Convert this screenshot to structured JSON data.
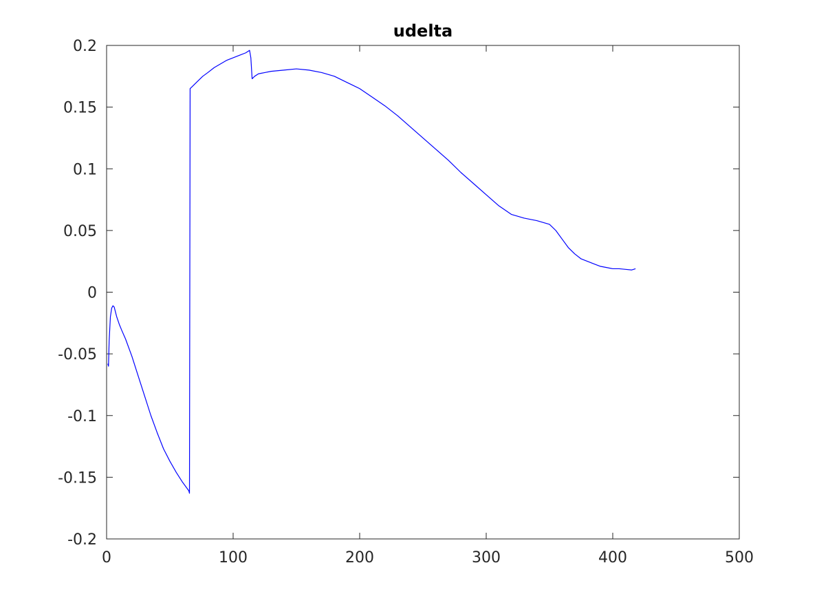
{
  "chart_data": {
    "type": "line",
    "title": "udelta",
    "xlabel": "",
    "ylabel": "",
    "xlim": [
      0,
      500
    ],
    "ylim": [
      -0.2,
      0.2
    ],
    "xticks": [
      0,
      100,
      200,
      300,
      400,
      500
    ],
    "xtick_labels": [
      "0",
      "100",
      "200",
      "300",
      "400",
      "500"
    ],
    "yticks": [
      -0.2,
      -0.15,
      -0.1,
      -0.05,
      0,
      0.05,
      0.1,
      0.15,
      0.2
    ],
    "ytick_labels": [
      "-0.2",
      "-0.15",
      "-0.1",
      "-0.05",
      "0",
      "0.05",
      "0.1",
      "0.15",
      "0.2"
    ],
    "grid": false,
    "box": true,
    "series": [
      {
        "color": "#0000ff",
        "x": [
          1,
          1.5,
          2,
          3,
          4,
          5,
          6,
          7,
          8,
          10,
          12,
          15,
          20,
          25,
          30,
          35,
          40,
          45,
          50,
          55,
          60,
          65,
          65.5,
          66,
          68,
          72,
          76,
          80,
          85,
          90,
          95,
          100,
          105,
          110,
          113,
          114,
          115,
          117,
          120,
          125,
          130,
          140,
          150,
          160,
          170,
          180,
          190,
          200,
          210,
          220,
          230,
          240,
          250,
          260,
          270,
          280,
          290,
          300,
          310,
          320,
          330,
          340,
          350,
          355,
          360,
          365,
          370,
          375,
          380,
          385,
          390,
          395,
          400,
          405,
          410,
          415,
          418
        ],
        "y": [
          -0.058,
          -0.06,
          -0.04,
          -0.02,
          -0.013,
          -0.011,
          -0.012,
          -0.016,
          -0.02,
          -0.026,
          -0.031,
          -0.038,
          -0.052,
          -0.068,
          -0.084,
          -0.1,
          -0.114,
          -0.127,
          -0.137,
          -0.146,
          -0.154,
          -0.161,
          -0.163,
          0.165,
          0.167,
          0.171,
          0.175,
          0.178,
          0.182,
          0.185,
          0.188,
          0.19,
          0.192,
          0.194,
          0.196,
          0.19,
          0.173,
          0.175,
          0.177,
          0.178,
          0.179,
          0.18,
          0.181,
          0.18,
          0.178,
          0.175,
          0.17,
          0.165,
          0.158,
          0.151,
          0.143,
          0.134,
          0.125,
          0.116,
          0.107,
          0.097,
          0.088,
          0.079,
          0.07,
          0.063,
          0.06,
          0.058,
          0.055,
          0.05,
          0.043,
          0.036,
          0.031,
          0.027,
          0.025,
          0.023,
          0.021,
          0.02,
          0.019,
          0.019,
          0.0185,
          0.018,
          0.019
        ]
      }
    ]
  }
}
